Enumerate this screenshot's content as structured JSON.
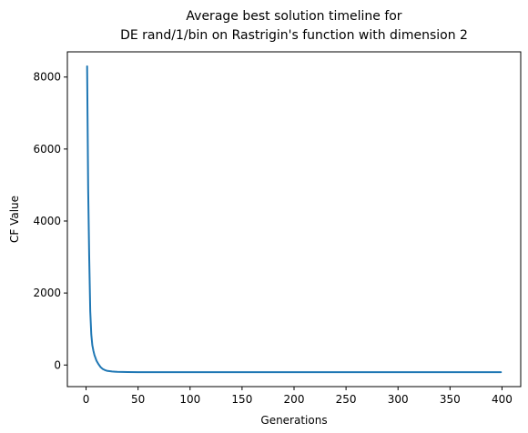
{
  "chart_data": {
    "type": "line",
    "title_line1": "Average best solution timeline for",
    "title_line2": "DE rand/1/bin on Rastrigin's function with dimension 2",
    "xlabel": "Generations",
    "ylabel": "CF Value",
    "xlim": [
      -18,
      418
    ],
    "ylim": [
      -600,
      8700
    ],
    "xticks": [
      0,
      50,
      100,
      150,
      200,
      250,
      300,
      350,
      400
    ],
    "yticks": [
      0,
      2000,
      4000,
      6000,
      8000
    ],
    "grid": false,
    "line_color": "#1f77b4",
    "series": [
      {
        "x": [
          1,
          2,
          3,
          4,
          5,
          6,
          7,
          8,
          10,
          12,
          14,
          16,
          18,
          20,
          25,
          30,
          40,
          50,
          60,
          80,
          100,
          150,
          200,
          250,
          300,
          350,
          399
        ],
        "values": [
          8300,
          4900,
          3000,
          1500,
          850,
          550,
          400,
          280,
          120,
          20,
          -60,
          -110,
          -140,
          -160,
          -180,
          -190,
          -195,
          -198,
          -199,
          -200,
          -200,
          -200,
          -200,
          -200,
          -200,
          -200,
          -200
        ]
      }
    ]
  }
}
